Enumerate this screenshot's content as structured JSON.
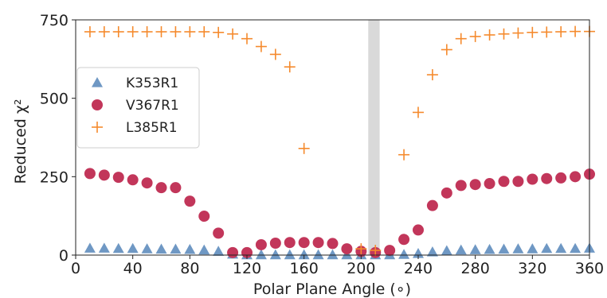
{
  "chart_data": {
    "type": "scatter",
    "xlabel": "Polar Plane Angle (∘)",
    "ylabel": "Reduced χ²",
    "xlim": [
      0,
      360
    ],
    "ylim": [
      0,
      750
    ],
    "xticks": [
      "0",
      "40",
      "80",
      "120",
      "160",
      "200",
      "240",
      "280",
      "320",
      "360"
    ],
    "yticks": [
      "0",
      "250",
      "500",
      "750"
    ],
    "grid": false,
    "legend_position": "left",
    "shaded_band": {
      "x_start": 205,
      "x_end": 213,
      "color": "#d9d9d9"
    },
    "x": [
      10,
      20,
      30,
      40,
      50,
      60,
      70,
      80,
      90,
      100,
      110,
      120,
      130,
      140,
      150,
      160,
      170,
      180,
      190,
      200,
      210,
      220,
      230,
      240,
      250,
      260,
      270,
      280,
      290,
      300,
      310,
      320,
      330,
      340,
      350,
      360
    ],
    "series": [
      {
        "name": "K353R1",
        "marker": "triangle",
        "color": "#6f98c4",
        "values": [
          22,
          22,
          21,
          21,
          20,
          19,
          19,
          18,
          16,
          12,
          3,
          1,
          1,
          1,
          1,
          1,
          1,
          1,
          1,
          1,
          1,
          1,
          2,
          5,
          10,
          14,
          16,
          17,
          18,
          19,
          20,
          20,
          21,
          21,
          21,
          22
        ]
      },
      {
        "name": "V367R1",
        "marker": "circle",
        "color": "#c2365a",
        "values": [
          260,
          255,
          248,
          240,
          230,
          215,
          215,
          172,
          124,
          70,
          8,
          8,
          33,
          38,
          40,
          40,
          40,
          37,
          20,
          12,
          8,
          15,
          50,
          80,
          158,
          198,
          222,
          225,
          228,
          235,
          235,
          242,
          244,
          246,
          250,
          258
        ]
      },
      {
        "name": "L385R1",
        "marker": "plus",
        "color": "#f58a2d",
        "values": [
          712,
          712,
          712,
          712,
          712,
          712,
          712,
          712,
          712,
          710,
          705,
          690,
          665,
          640,
          600,
          340,
          null,
          null,
          null,
          20,
          15,
          null,
          320,
          455,
          575,
          655,
          690,
          697,
          702,
          705,
          708,
          710,
          711,
          712,
          713,
          713
        ]
      }
    ]
  }
}
